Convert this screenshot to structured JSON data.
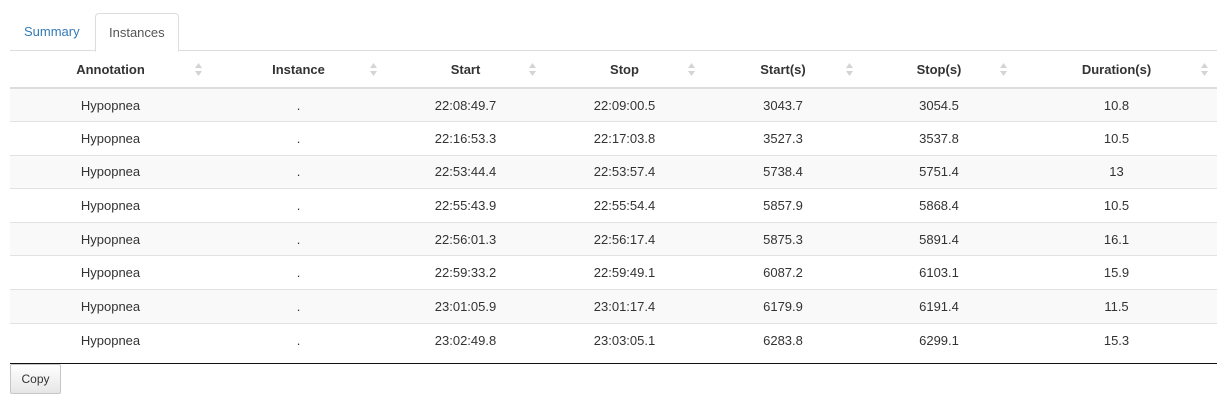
{
  "tabs": [
    {
      "label": "Summary",
      "active": false
    },
    {
      "label": "Instances",
      "active": true
    }
  ],
  "table": {
    "columns": [
      "Annotation",
      "Instance",
      "Start",
      "Stop",
      "Start(s)",
      "Stop(s)",
      "Duration(s)"
    ],
    "rows": [
      [
        "Hypopnea",
        ".",
        "22:08:49.7",
        "22:09:00.5",
        "3043.7",
        "3054.5",
        "10.8"
      ],
      [
        "Hypopnea",
        ".",
        "22:16:53.3",
        "22:17:03.8",
        "3527.3",
        "3537.8",
        "10.5"
      ],
      [
        "Hypopnea",
        ".",
        "22:53:44.4",
        "22:53:57.4",
        "5738.4",
        "5751.4",
        "13"
      ],
      [
        "Hypopnea",
        ".",
        "22:55:43.9",
        "22:55:54.4",
        "5857.9",
        "5868.4",
        "10.5"
      ],
      [
        "Hypopnea",
        ".",
        "22:56:01.3",
        "22:56:17.4",
        "5875.3",
        "5891.4",
        "16.1"
      ],
      [
        "Hypopnea",
        ".",
        "22:59:33.2",
        "22:59:49.1",
        "6087.2",
        "6103.1",
        "15.9"
      ],
      [
        "Hypopnea",
        ".",
        "23:01:05.9",
        "23:01:17.4",
        "6179.9",
        "6191.4",
        "11.5"
      ],
      [
        "Hypopnea",
        ".",
        "23:02:49.8",
        "23:03:05.1",
        "6283.8",
        "6299.1",
        "15.3"
      ]
    ]
  },
  "buttons": {
    "copy_label": "Copy"
  }
}
